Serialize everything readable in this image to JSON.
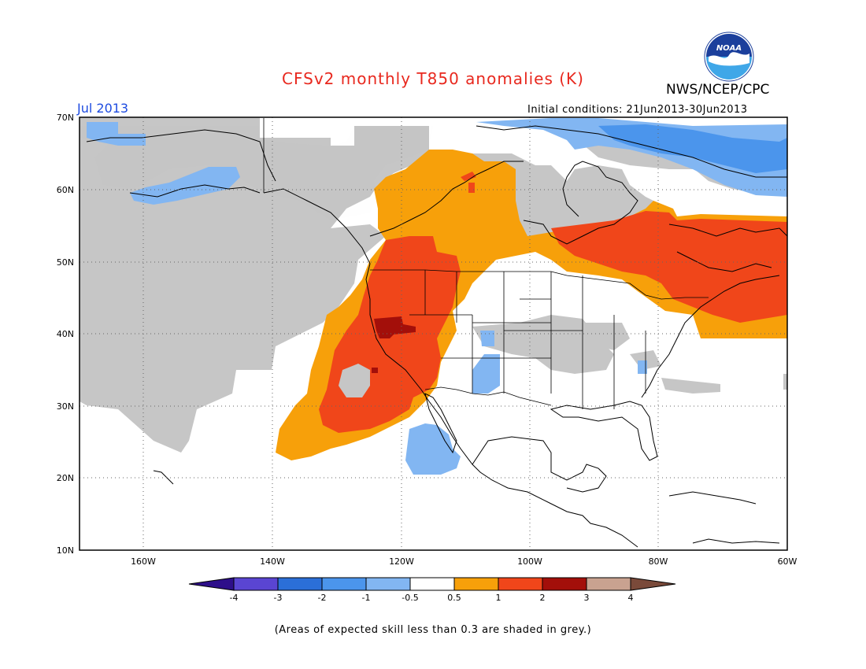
{
  "header": {
    "title": "CFSv2 monthly T850 anomalies (K)",
    "month": "Jul 2013",
    "initial_conditions": "Initial conditions: 21Jun2013-30Jun2013",
    "org": "NWS/NCEP/CPC",
    "logo_text": "NOAA"
  },
  "map": {
    "lat_labels": [
      "70N",
      "60N",
      "50N",
      "40N",
      "30N",
      "20N",
      "10N"
    ],
    "lon_labels": [
      "160W",
      "140W",
      "120W",
      "100W",
      "80W",
      "60W"
    ],
    "lat_range": [
      10,
      70
    ],
    "lon_range": [
      -170,
      -60
    ],
    "grid": "dotted"
  },
  "colorbar": {
    "labels": [
      "-4",
      "-3",
      "-2",
      "-1",
      "-0.5",
      "0.5",
      "1",
      "2",
      "3",
      "4"
    ],
    "colors": [
      "#2e0f8a",
      "#5a45d2",
      "#2b6fd8",
      "#4b95ec",
      "#82b6f2",
      "#ffffff",
      "#f7a00a",
      "#f0461a",
      "#a30f0a",
      "#c9a290",
      "#7a4a3a"
    ]
  },
  "footer": {
    "skill_note": "(Areas of expected skill less than 0.3 are shaded in grey.)"
  },
  "colors": {
    "grey": "#c6c6c6",
    "orange": "#f7a00a",
    "red": "#f0461a",
    "darkred": "#a30f0a",
    "lightblue": "#82b6f2",
    "blue": "#4b95ec"
  }
}
